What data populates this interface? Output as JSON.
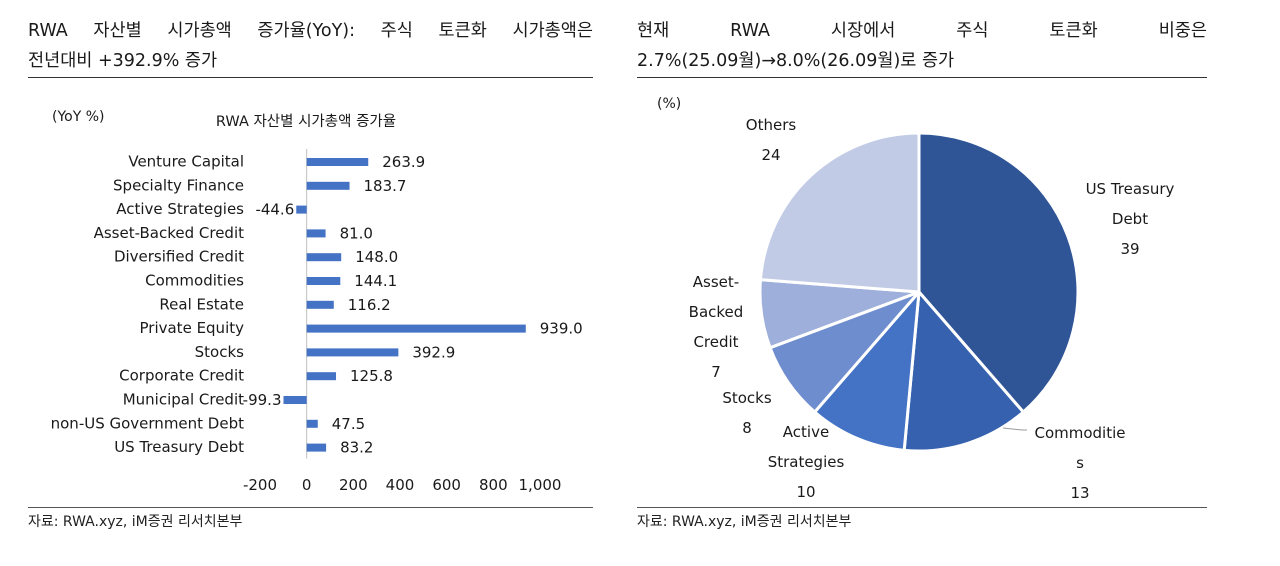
{
  "left": {
    "heading_line1": "RWA 자산별 시가총액 증가율(YoY): 주식 토큰화 시가총액은",
    "heading_line2": "전년대비 +392.9% 증가",
    "source": "자료: RWA.xyz, iM증권 리서치본부"
  },
  "right": {
    "heading_line1": "현재 RWA 시장에서 주식 토큰화 비중은",
    "heading_line2": "2.7%(25.09월)→8.0%(26.09월)로 증가",
    "source": "자료: RWA.xyz, iM증권 리서치본부"
  },
  "chart_data": [
    {
      "type": "bar",
      "orientation": "horizontal",
      "title": "RWA 자산별 시가총액 증가율",
      "unit_label": "(YoY %)",
      "categories": [
        "Venture Capital",
        "Specialty Finance",
        "Active Strategies",
        "Asset-Backed Credit",
        "Diversified Credit",
        "Commodities",
        "Real Estate",
        "Private Equity",
        "Stocks",
        "Corporate Credit",
        "Municipal Credit",
        "non-US Government Debt",
        "US Treasury Debt"
      ],
      "values": [
        263.9,
        183.7,
        -44.6,
        81.0,
        148.0,
        144.1,
        116.2,
        939.0,
        392.9,
        125.8,
        -99.3,
        47.5,
        83.2
      ],
      "value_labels": [
        "263.9",
        "183.7",
        "-44.6",
        "81.0",
        "148.0",
        "144.1",
        "116.2",
        "939.0",
        "392.9",
        "125.8",
        "-99.3",
        "47.5",
        "83.2"
      ],
      "xlim": [
        -200,
        1000
      ],
      "xticks": [
        -200,
        0,
        200,
        400,
        600,
        800,
        1000
      ],
      "xtick_labels": [
        "-200",
        "0",
        "200",
        "400",
        "600",
        "800",
        "1,000"
      ],
      "bar_color": "#4472C4",
      "grid": false
    },
    {
      "type": "pie",
      "unit_label": "(%)",
      "slices": [
        {
          "label": "US Treasury Debt",
          "value": 39,
          "color": "#2F5597"
        },
        {
          "label": "Commodities",
          "value": 13,
          "color": "#3561AE"
        },
        {
          "label": "Active Strategies",
          "value": 10,
          "color": "#4472C4"
        },
        {
          "label": "Stocks",
          "value": 8,
          "color": "#6E8DCE"
        },
        {
          "label": "Asset-Backed Credit",
          "value": 7,
          "color": "#9DAFDA"
        },
        {
          "label": "Others",
          "value": 24,
          "color": "#C1CBE5"
        }
      ],
      "slice_label_lines": [
        [
          "US Treasury",
          "Debt",
          "39"
        ],
        [
          "Commoditie",
          "s",
          "13"
        ],
        [
          "Active",
          "Strategies",
          "10"
        ],
        [
          "Stocks",
          "8"
        ],
        [
          "Asset-",
          "Backed",
          "Credit",
          "7"
        ],
        [
          "Others",
          "24"
        ]
      ]
    }
  ]
}
